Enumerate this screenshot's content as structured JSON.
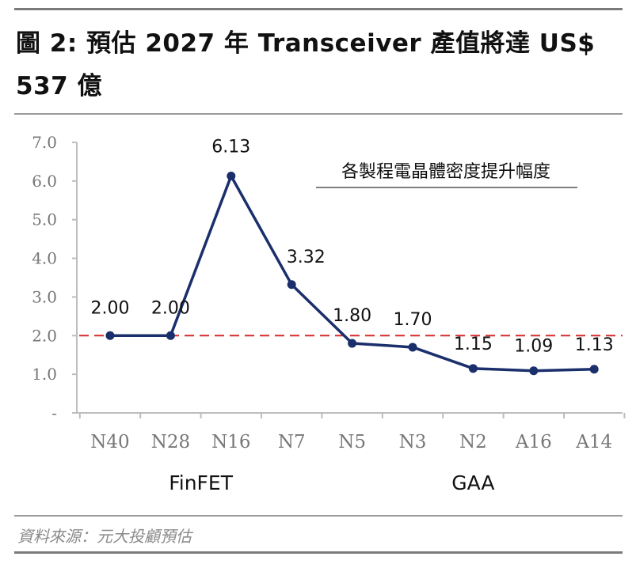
{
  "figure": {
    "title": "圖 2: 預估 2027 年 Transceiver 產值將達 US$ 537 億",
    "source": "資料來源：元大投顧預估"
  },
  "chart_data": {
    "type": "line",
    "title": "",
    "annotation": "各製程電晶體密度提升幅度",
    "categories": [
      "N40",
      "N28",
      "N16",
      "N7",
      "N5",
      "N3",
      "N2",
      "A16",
      "A14"
    ],
    "series": [
      {
        "values": [
          2.0,
          2.0,
          6.13,
          3.32,
          1.8,
          1.7,
          1.15,
          1.09,
          1.13
        ],
        "labels": [
          "2.00",
          "2.00",
          "6.13",
          "3.32",
          "1.80",
          "1.70",
          "1.15",
          "1.09",
          "1.13"
        ],
        "color": "#1a2f6b"
      }
    ],
    "reference_line": {
      "value": 2.0,
      "color": "#d62b2b",
      "style": "dashed"
    },
    "yticks": [
      "-",
      "1.0",
      "2.0",
      "3.0",
      "4.0",
      "5.0",
      "6.0",
      "7.0"
    ],
    "ylim": [
      0,
      7
    ],
    "groups": [
      {
        "label": "FinFET",
        "from": "N40",
        "to": "N7"
      },
      {
        "label": "GAA",
        "from": "N5",
        "to": "A14"
      }
    ],
    "grid": false
  }
}
